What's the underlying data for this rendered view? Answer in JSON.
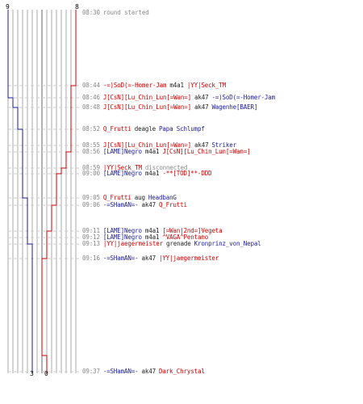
{
  "colors": {
    "team_blue": "#1a1aa0",
    "team_red": "#cc0000",
    "timestamp": "#888888",
    "neutral_text": "#888888",
    "body_text": "#222222",
    "gridline": "#aaaaaa",
    "dashed_line": "#cccccc"
  },
  "scores": {
    "blue_start": "9",
    "red_start": "8",
    "blue_end": "3",
    "red_end": "0"
  },
  "events": [
    {
      "time": "08:30",
      "parts": [
        {
          "text": "round started",
          "color": "gray"
        }
      ]
    },
    {
      "time": "08:44",
      "parts": [
        {
          "text": "-=)SoD(=-Homer-Jam",
          "color": "red"
        },
        {
          "text": "m4a1",
          "color": "black"
        },
        {
          "text": "|YY|Seck_TM",
          "color": "red"
        }
      ]
    },
    {
      "time": "08:46",
      "parts": [
        {
          "text": "J[CsN][Lu_Chin_Lun[=Wan=]",
          "color": "red"
        },
        {
          "text": "ak47",
          "color": "black"
        },
        {
          "text": "-=)SoD(=-Homer-Jam",
          "color": "blue"
        }
      ]
    },
    {
      "time": "08:48",
      "parts": [
        {
          "text": "J[CsN][Lu_Chin_Lun[=Wan=]",
          "color": "red"
        },
        {
          "text": "ak47",
          "color": "black"
        },
        {
          "text": "Wagenhe[BAER]",
          "color": "blue"
        }
      ]
    },
    {
      "time": "08:52",
      "parts": [
        {
          "text": "Q_Frutti",
          "color": "red"
        },
        {
          "text": "deagle",
          "color": "black"
        },
        {
          "text": "Papa Schlumpf",
          "color": "blue"
        }
      ]
    },
    {
      "time": "08:55",
      "parts": [
        {
          "text": "J[CsN][Lu_Chin_Lun[=Wan=]",
          "color": "red"
        },
        {
          "text": "ak47",
          "color": "black"
        },
        {
          "text": "Striker",
          "color": "blue"
        }
      ]
    },
    {
      "time": "08:56",
      "parts": [
        {
          "text": "[LAME]Negro",
          "color": "blue"
        },
        {
          "text": "m4a1",
          "color": "black"
        },
        {
          "text": "J[CsN][Lu_Chin_Lun[=Wan=]",
          "color": "red"
        }
      ]
    },
    {
      "time": "08:59",
      "parts": [
        {
          "text": "|YY|Seck_TM",
          "color": "red"
        },
        {
          "text": "disconnected",
          "color": "gray"
        }
      ]
    },
    {
      "time": "09:00",
      "parts": [
        {
          "text": "[LAME]Negro",
          "color": "blue"
        },
        {
          "text": "m4a1",
          "color": "black"
        },
        {
          "text": "-**[TOD]**-DDD",
          "color": "red"
        }
      ]
    },
    {
      "time": "09:05",
      "parts": [
        {
          "text": "Q_Frutti",
          "color": "red"
        },
        {
          "text": "aug",
          "color": "black"
        },
        {
          "text": "HeadbanG",
          "color": "blue"
        }
      ]
    },
    {
      "time": "09:06",
      "parts": [
        {
          "text": "-=SHamAN=-",
          "color": "blue"
        },
        {
          "text": "ak47",
          "color": "black"
        },
        {
          "text": "Q_Frutti",
          "color": "red"
        }
      ]
    },
    {
      "time": "09:11",
      "parts": [
        {
          "text": "[LAME]Negro",
          "color": "blue"
        },
        {
          "text": "m4a1",
          "color": "black"
        },
        {
          "text": "[=Wan|2nd=]Vegeta",
          "color": "red"
        }
      ]
    },
    {
      "time": "09:12",
      "parts": [
        {
          "text": "[LAME]Negro",
          "color": "blue"
        },
        {
          "text": "m4a1",
          "color": "black"
        },
        {
          "text": "^VAGA^Pentano",
          "color": "red"
        }
      ]
    },
    {
      "time": "09:13",
      "parts": [
        {
          "text": "|YY|jaegermeister",
          "color": "red"
        },
        {
          "text": "grenade",
          "color": "black"
        },
        {
          "text": "Kronprinz_von_Nepal",
          "color": "blue"
        }
      ]
    },
    {
      "time": "09:16",
      "parts": [
        {
          "text": "-=SHamAN=-",
          "color": "blue"
        },
        {
          "text": "ak47",
          "color": "black"
        },
        {
          "text": "|YY|jaegermeister",
          "color": "red"
        }
      ]
    },
    {
      "time": "09:37",
      "parts": [
        {
          "text": "-=SHamAN=-",
          "color": "blue"
        },
        {
          "text": "ak47",
          "color": "black"
        },
        {
          "text": "Dark_Chrystal",
          "color": "red"
        }
      ]
    }
  ]
}
